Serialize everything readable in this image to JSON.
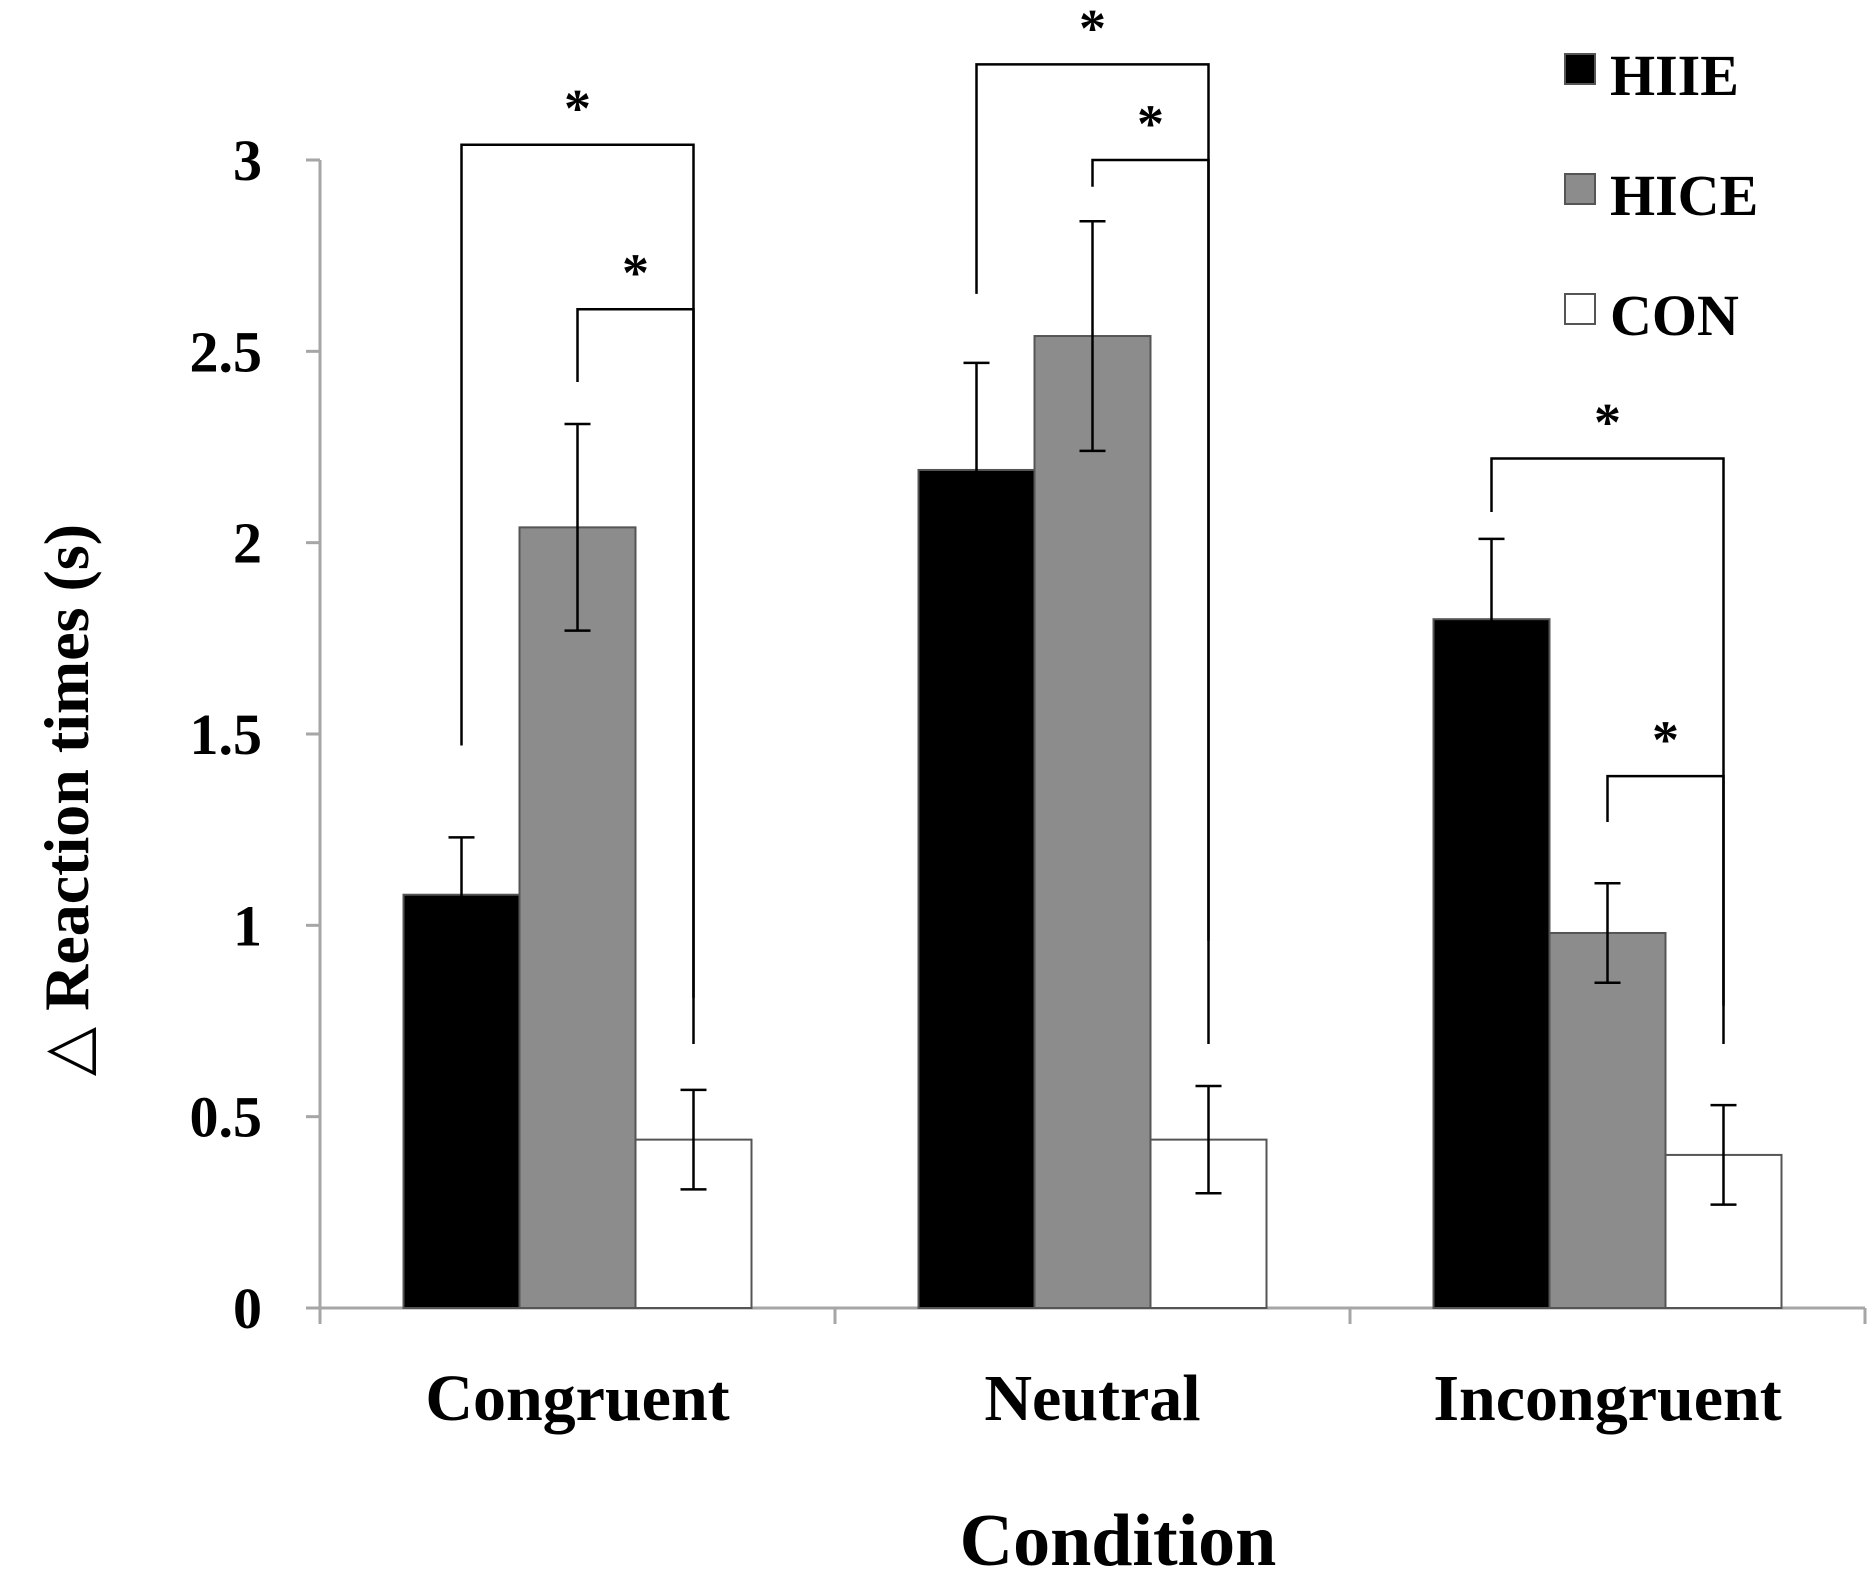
{
  "chart_data": {
    "type": "bar",
    "title": "",
    "xlabel": "Condition",
    "ylabel": "△ Reaction times (s)",
    "ylim": [
      0,
      3
    ],
    "yticks": [
      0,
      0.5,
      1,
      1.5,
      2,
      2.5,
      3
    ],
    "ytick_labels": [
      "0",
      "0.5",
      "1",
      "1.5",
      "2",
      "2.5",
      "3"
    ],
    "grid": false,
    "legend_position": "top-right",
    "categories": [
      "Congruent",
      "Neutral",
      "Incongruent"
    ],
    "series": [
      {
        "name": "HIIE",
        "color": "#000000",
        "values": [
          1.08,
          2.19,
          1.8
        ],
        "errors": [
          0.15,
          0.28,
          0.21
        ]
      },
      {
        "name": "HICE",
        "color": "#8c8c8c",
        "values": [
          2.04,
          2.54,
          0.98
        ],
        "errors": [
          0.27,
          0.3,
          0.13
        ]
      },
      {
        "name": "CON",
        "color": "#ffffff",
        "values": [
          0.44,
          0.44,
          0.4
        ],
        "errors": [
          0.13,
          0.14,
          0.13
        ]
      }
    ],
    "significance": [
      {
        "category": 0,
        "from": 0,
        "to": 2,
        "label": "*",
        "level": 3.04,
        "left_end": 1.47,
        "right_end": 0.69
      },
      {
        "category": 0,
        "from": 1,
        "to": 2,
        "label": "*",
        "level": 2.61,
        "left_end": 2.42,
        "right_end": 0.81
      },
      {
        "category": 1,
        "from": 0,
        "to": 2,
        "label": "*",
        "level": 3.25,
        "left_end": 2.65,
        "right_end": 0.69
      },
      {
        "category": 1,
        "from": 1,
        "to": 2,
        "label": "*",
        "level": 3.0,
        "left_end": 2.93,
        "right_end": 0.96
      },
      {
        "category": 2,
        "from": 0,
        "to": 2,
        "label": "*",
        "level": 2.22,
        "left_end": 2.08,
        "right_end": 0.69
      },
      {
        "category": 2,
        "from": 1,
        "to": 2,
        "label": "*",
        "level": 1.39,
        "left_end": 1.27,
        "right_end": 0.79
      }
    ]
  }
}
